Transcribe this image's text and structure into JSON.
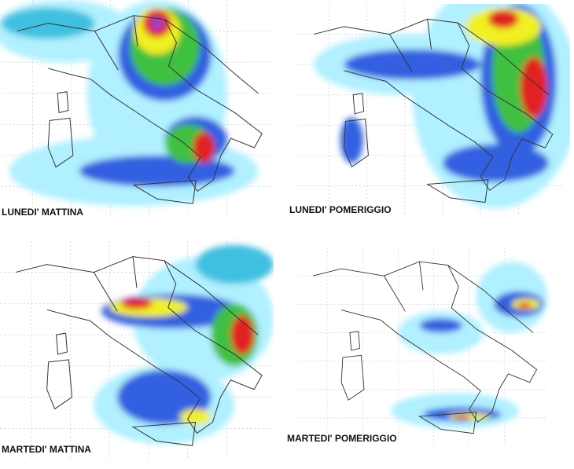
{
  "panels": [
    {
      "label": "LUNEDI' MATTINA"
    },
    {
      "label": "LUNEDI' POMERIGGIO"
    },
    {
      "label": "MARTEDI' MATTINA"
    },
    {
      "label": "MARTEDI' POMERIGGIO"
    }
  ]
}
